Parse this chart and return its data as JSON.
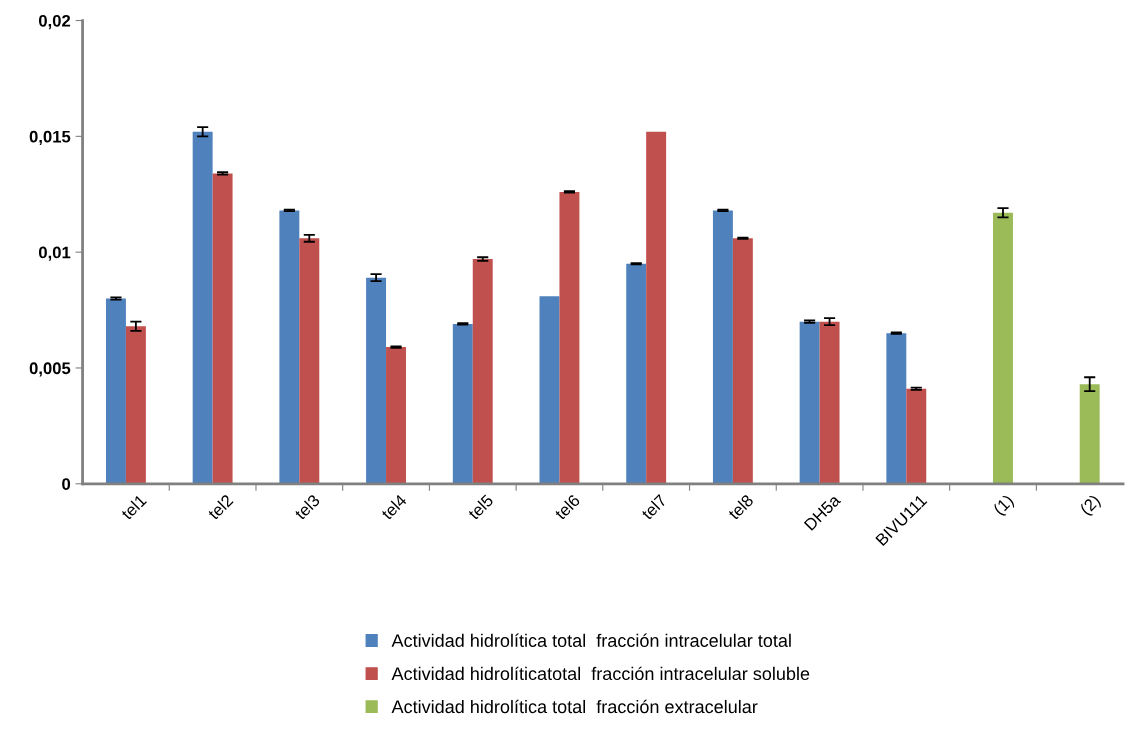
{
  "chart_data": {
    "type": "bar",
    "categories": [
      "tel1",
      "tel2",
      "tel3",
      "tel4",
      "tel5",
      "tel6",
      "tel7",
      "tel8",
      "DH5a",
      "BIVU111",
      "(1)",
      "(2)"
    ],
    "series": [
      {
        "name": "Actividad hidrolítica total  fracción intracelular total",
        "color": "#4f81bd",
        "values": [
          0.008,
          0.0152,
          0.0118,
          0.0089,
          0.0069,
          0.0081,
          0.0095,
          0.0118,
          0.007,
          0.0065,
          null,
          null
        ],
        "errors": [
          5e-05,
          0.0002,
          3e-05,
          0.00015,
          3e-05,
          null,
          3e-05,
          3e-05,
          5e-05,
          3e-05,
          null,
          null
        ]
      },
      {
        "name": "Actividad hidrolíticatotal  fracción intracelular soluble",
        "color": "#c0504d",
        "values": [
          0.0068,
          0.0134,
          0.0106,
          0.0059,
          0.0097,
          0.0126,
          0.0152,
          0.0106,
          0.007,
          0.0041,
          null,
          null
        ],
        "errors": [
          0.0002,
          5e-05,
          0.00015,
          3e-05,
          8e-05,
          3e-05,
          null,
          3e-05,
          0.00015,
          5e-05,
          null,
          null
        ]
      },
      {
        "name": "Actividad hidrolítica total  fracción extracelular",
        "color": "#9bbb59",
        "values": [
          null,
          null,
          null,
          null,
          null,
          null,
          null,
          null,
          null,
          null,
          0.0117,
          0.0043
        ],
        "errors": [
          null,
          null,
          null,
          null,
          null,
          null,
          null,
          null,
          null,
          null,
          0.0002,
          0.0003
        ]
      }
    ],
    "ylim": [
      0,
      0.02
    ],
    "yticks": [
      {
        "value": 0,
        "label": "0"
      },
      {
        "value": 0.005,
        "label": "0,005"
      },
      {
        "value": 0.01,
        "label": "0,01"
      },
      {
        "value": 0.015,
        "label": "0,015"
      },
      {
        "value": 0.02,
        "label": "0,02"
      }
    ],
    "grid": false,
    "legend": "bottom"
  }
}
